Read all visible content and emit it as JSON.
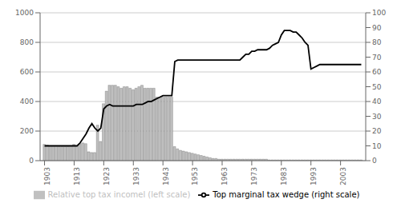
{
  "chart_data": {
    "type": "bar",
    "x": [
      1903,
      1904,
      1905,
      1906,
      1907,
      1908,
      1909,
      1910,
      1911,
      1912,
      1913,
      1914,
      1915,
      1916,
      1917,
      1918,
      1919,
      1920,
      1921,
      1922,
      1923,
      1924,
      1925,
      1926,
      1927,
      1928,
      1929,
      1930,
      1931,
      1932,
      1933,
      1934,
      1935,
      1936,
      1937,
      1938,
      1939,
      1940,
      1941,
      1942,
      1943,
      1944,
      1945,
      1946,
      1947,
      1948,
      1949,
      1950,
      1951,
      1952,
      1953,
      1954,
      1955,
      1956,
      1957,
      1958,
      1959,
      1960,
      1961,
      1962,
      1963,
      1964,
      1965,
      1966,
      1967,
      1968,
      1969,
      1970,
      1971,
      1972,
      1973,
      1974,
      1975,
      1976,
      1977,
      1978,
      1979,
      1980,
      1981,
      1982,
      1983,
      1984,
      1985,
      1986,
      1987,
      1988,
      1989,
      1990,
      1991,
      1992,
      1993,
      1994,
      1995,
      1996,
      1997,
      1998,
      1999,
      2000,
      2001,
      2002,
      2003,
      2004,
      2005,
      2006,
      2007,
      2008,
      2009,
      2010
    ],
    "series": [
      {
        "name": "Relative top tax incomel (left scale)",
        "type": "bar",
        "axis": "y",
        "color": "#c0c0c0",
        "values": [
          110,
          105,
          100,
          100,
          100,
          95,
          95,
          95,
          95,
          100,
          110,
          100,
          115,
          120,
          115,
          60,
          55,
          55,
          240,
          130,
          385,
          470,
          510,
          510,
          510,
          500,
          490,
          500,
          500,
          490,
          480,
          490,
          500,
          510,
          490,
          490,
          490,
          490,
          430,
          430,
          430,
          430,
          430,
          430,
          95,
          80,
          70,
          65,
          60,
          55,
          50,
          45,
          40,
          35,
          30,
          25,
          20,
          15,
          15,
          10,
          10,
          10,
          10,
          10,
          10,
          10,
          10,
          10,
          10,
          10,
          10,
          10,
          10,
          10,
          10,
          10,
          5,
          5,
          5,
          5,
          5,
          5,
          5,
          5,
          5,
          5,
          5,
          5,
          5,
          5,
          5,
          5,
          5,
          5,
          5,
          5,
          5,
          5,
          5,
          5,
          5,
          5,
          5,
          5,
          5,
          5,
          5,
          5
        ]
      },
      {
        "name": "Top marginal tax wedge (right scale)",
        "type": "line",
        "axis": "y2",
        "color": "#000000",
        "values": [
          10,
          10,
          10,
          10,
          10,
          10,
          10,
          10,
          10,
          10,
          10,
          10,
          12,
          15,
          18,
          22,
          25,
          22,
          20,
          22,
          35,
          37,
          38,
          37,
          37,
          37,
          37,
          37,
          37,
          37,
          37,
          38,
          38,
          38,
          39,
          40,
          40,
          41,
          42,
          43,
          44,
          44,
          44,
          44,
          67,
          68,
          68,
          68,
          68,
          68,
          68,
          68,
          68,
          68,
          68,
          68,
          68,
          68,
          68,
          68,
          68,
          68,
          68,
          68,
          68,
          68,
          68,
          70,
          72,
          72,
          74,
          74,
          75,
          75,
          75,
          75,
          76,
          78,
          79,
          80,
          85,
          88,
          88,
          88,
          87,
          87,
          85,
          83,
          80,
          78,
          62,
          63,
          64,
          65,
          65,
          65,
          65,
          65,
          65,
          65,
          65,
          65,
          65,
          65,
          65,
          65,
          65,
          65
        ]
      }
    ],
    "xlim": [
      1901.5,
      2011.5
    ],
    "xticks": [
      1903,
      1913,
      1923,
      1933,
      1943,
      1953,
      1963,
      1973,
      1983,
      1993,
      2003
    ],
    "ylim": [
      0,
      1000
    ],
    "yticks": [
      0,
      200,
      400,
      600,
      800,
      1000
    ],
    "y2lim": [
      0,
      100
    ],
    "y2ticks": [
      0,
      10,
      20,
      30,
      40,
      50,
      60,
      70,
      80,
      90,
      100
    ],
    "grid": true,
    "legend": "bottom"
  }
}
